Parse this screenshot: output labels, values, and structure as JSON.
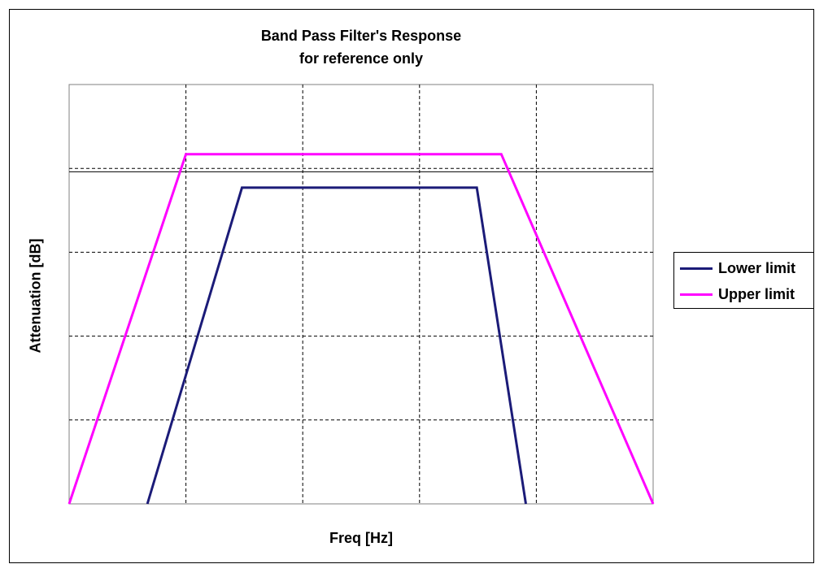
{
  "chart_data": {
    "type": "line",
    "title": "Band Pass Filter's Response",
    "subtitle": "for reference only",
    "xlabel": "Freq [Hz]",
    "ylabel": "Attenuation [dB]",
    "xlim": [
      0,
      5
    ],
    "ylim": [
      0,
      5
    ],
    "grid": true,
    "legend_position": "right",
    "series": [
      {
        "name": "Lower limit",
        "color": "#1b1b78",
        "x": [
          0.67,
          1.48,
          3.49,
          3.91
        ],
        "y": [
          0,
          3.77,
          3.77,
          0
        ]
      },
      {
        "name": "Upper limit",
        "color": "#ff00ff",
        "x": [
          0,
          1.0,
          3.7,
          5.0
        ],
        "y": [
          0,
          4.17,
          4.17,
          0
        ]
      }
    ],
    "reference_line": {
      "y": 3.96,
      "color": "#000000"
    }
  }
}
